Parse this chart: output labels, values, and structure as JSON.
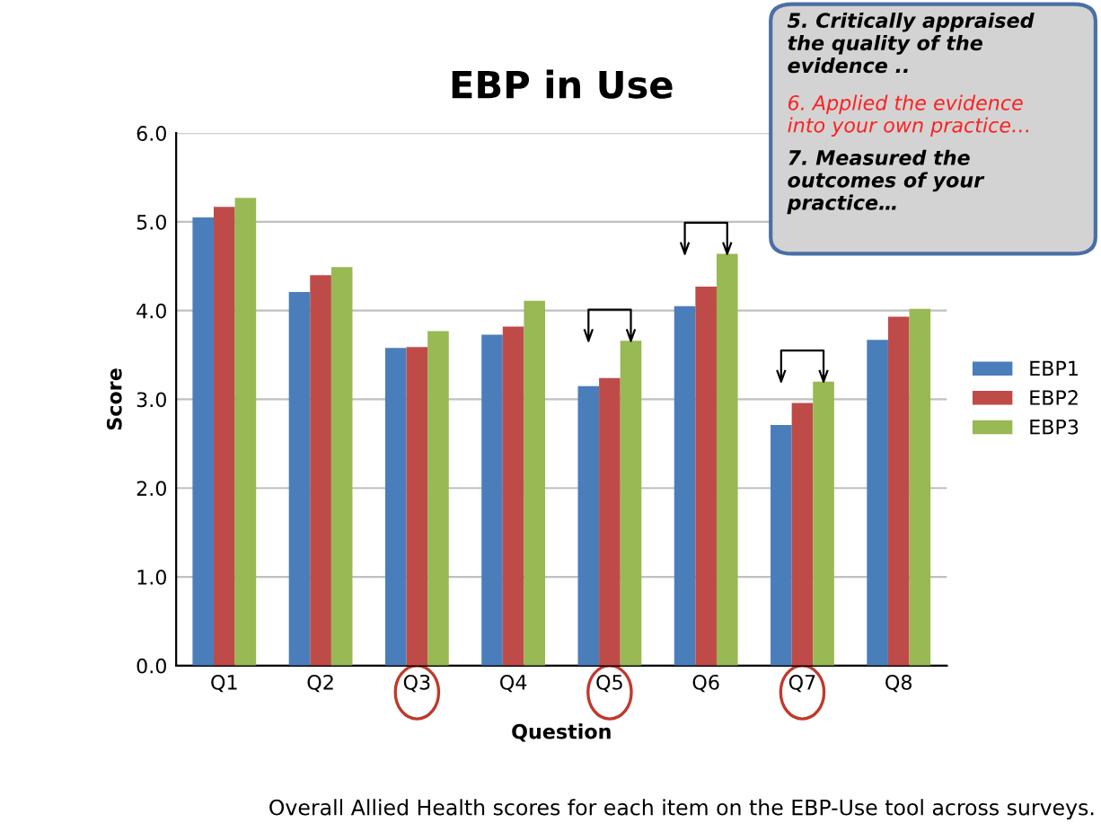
{
  "chart_data": {
    "type": "bar",
    "title": "EBP in Use",
    "xlabel": "Question",
    "ylabel": "Score",
    "categories": [
      "Q1",
      "Q2",
      "Q3",
      "Q4",
      "Q5",
      "Q6",
      "Q7",
      "Q8"
    ],
    "series": [
      {
        "name": "EBP1",
        "color": "#4a7ebb",
        "values": [
          5.05,
          4.21,
          3.58,
          3.73,
          3.15,
          4.05,
          2.71,
          3.67
        ]
      },
      {
        "name": "EBP2",
        "color": "#be4b48",
        "values": [
          5.17,
          4.4,
          3.59,
          3.82,
          3.24,
          4.27,
          2.96,
          3.93
        ]
      },
      {
        "name": "EBP3",
        "color": "#98b954",
        "values": [
          5.27,
          4.49,
          3.77,
          4.11,
          3.66,
          4.64,
          3.2,
          4.02
        ]
      }
    ],
    "ylim": [
      0,
      6
    ],
    "yticks": [
      {
        "value": 0,
        "label": "0.0"
      },
      {
        "value": 1,
        "label": "1.0"
      },
      {
        "value": 2,
        "label": "2.0"
      },
      {
        "value": 3,
        "label": "3.0"
      },
      {
        "value": 4,
        "label": "4.0"
      },
      {
        "value": 5,
        "label": "5.0"
      },
      {
        "value": 6,
        "label": "6.0"
      }
    ],
    "grid": "y",
    "legend": "right",
    "annotations": [
      "5. Critically appraised\nthe quality of the\nevidence ..",
      "6. Applied the evidence\ninto your own practice…",
      "7. Measured the\noutcomes of your\npractice…",
      "Overall Allied Health scores for each item on the EBP-Use tool across surveys."
    ]
  }
}
